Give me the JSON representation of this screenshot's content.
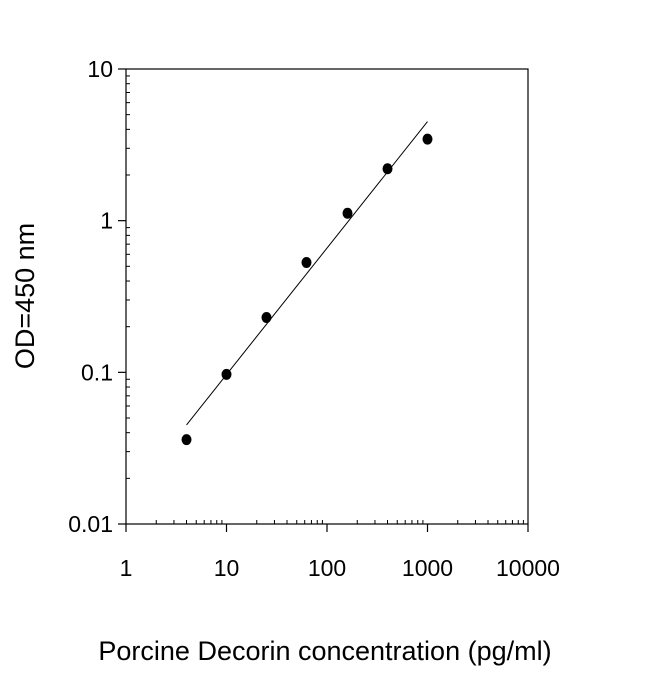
{
  "chart_data": {
    "type": "scatter",
    "title": "",
    "xlabel": "Porcine Decorin concentration (pg/ml)",
    "ylabel": "OD=450 nm",
    "xscale": "log",
    "yscale": "log",
    "xlim": [
      1,
      10000
    ],
    "ylim": [
      0.01,
      10
    ],
    "xticks": [
      "1",
      "10",
      "100",
      "1000",
      "10000"
    ],
    "yticks": [
      "10",
      "1",
      "0.1",
      "0.01"
    ],
    "grid": false,
    "legend": "none",
    "series": [
      {
        "x": [
          4,
          10,
          25,
          62.5,
          160,
          400,
          1000
        ],
        "y": [
          0.036,
          0.097,
          0.23,
          0.53,
          1.12,
          2.2,
          3.45
        ]
      }
    ],
    "fit_line": {
      "type": "linear",
      "x": [
        4,
        1000
      ],
      "y": [
        0.045,
        4.5
      ]
    },
    "colors": {
      "points": "#000000",
      "line": "#000000",
      "axes": "#000000"
    }
  }
}
